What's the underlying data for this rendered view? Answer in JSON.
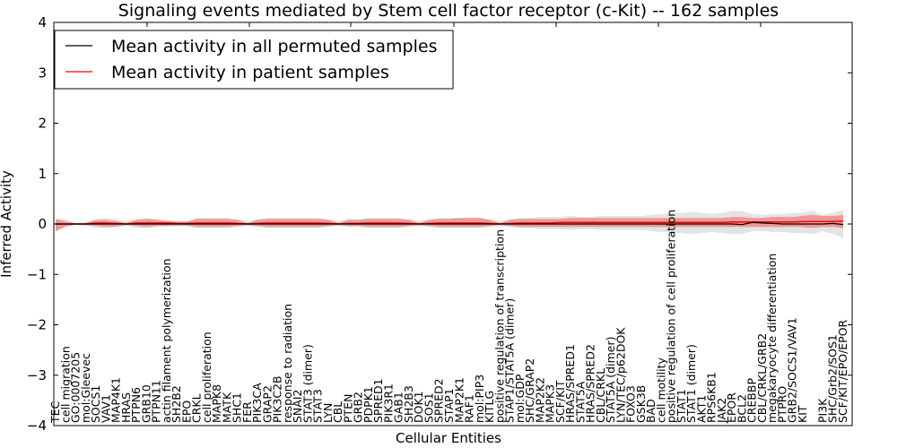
{
  "chart_data": {
    "type": "line",
    "title": "Signaling events mediated by Stem cell factor receptor (c-Kit) -- 162 samples",
    "xlabel": "Cellular Entities",
    "ylabel": "Inferred Activity",
    "ylim": [
      -4,
      4
    ],
    "yticks": [
      4,
      3,
      2,
      1,
      0,
      -1,
      -2,
      -3,
      -4
    ],
    "ytick_labels": [
      "4",
      "3",
      "2",
      "1",
      "0",
      "−1",
      "−2",
      "−3",
      "−4"
    ],
    "grid": false,
    "legend_position": "top-left",
    "legend": [
      {
        "name": "Mean activity in all permuted samples",
        "color": "#000000"
      },
      {
        "name": "Mean activity in patient samples",
        "color": "#ff0000"
      }
    ],
    "categories": [
      "TEC",
      "cell migration",
      "GO:0007205",
      "mol:Gleevec",
      "SOCS1",
      "VAV1",
      "MAP4K1",
      "HRAS",
      "PTPN6",
      "GRB10",
      "PTPN11",
      "actin filament polymerization",
      "SH2B2",
      "EPO",
      "CRKL",
      "cell proliferation",
      "MAPK8",
      "MATK",
      "SHC1",
      "FER",
      "PIK3CA",
      "GRAP2",
      "PIK3C2B",
      "response to radiation",
      "SNAI2",
      "STAT3 (dimer)",
      "STAT3",
      "LYN",
      "CBL",
      "PTEN",
      "GRB2",
      "PDPK1",
      "SPRED1",
      "PIK3R1",
      "GAB1",
      "SH2B3",
      "DOK1",
      "SOS1",
      "SPRED2",
      "STAP1",
      "MAP2K1",
      "RAF1",
      "mol:PIP3",
      "KITLG",
      "positive regulation of transcription",
      "STAP1/STAT5A (dimer)",
      "mol:GDP",
      "SHC/GRAP2",
      "MAP2K2",
      "MAPK3",
      "SCF/KIT",
      "HRAS/SPRED1",
      "STAT5A",
      "HRAS/SPRED2",
      "CBL/CRKL",
      "STAT5A (dimer)",
      "LYN/TEC/p62DOK",
      "FOXO3",
      "GSK3B",
      "BAD",
      "cell motility",
      "positive regulation of cell proliferation",
      "STAT1",
      "STAT1 (dimer)",
      "AKT1",
      "RPS6KB1",
      "JAK2",
      "EPOR",
      "BCL2",
      "CREBBP",
      "CBL/CRKL/GRB2",
      "megakaryocyte differentiation",
      "PTPRO",
      "GRB2/SOCS1/VAV1",
      "KIT",
      "",
      "PI3K",
      "SHC/Grb2/SOS1",
      "SCF/KIT/EPO/EPOR"
    ],
    "series": [
      {
        "name": "Mean activity in all permuted samples",
        "color": "#000000",
        "values": [
          0.0,
          0.0,
          0.0,
          0.0,
          0.0,
          0.0,
          0.0,
          0.0,
          0.0,
          0.0,
          0.0,
          0.0,
          0.0,
          0.0,
          0.0,
          0.0,
          0.0,
          0.0,
          0.0,
          0.0,
          0.0,
          0.0,
          0.0,
          0.0,
          0.0,
          0.0,
          0.0,
          0.0,
          0.0,
          0.0,
          0.0,
          0.0,
          0.0,
          0.0,
          0.0,
          0.0,
          0.0,
          0.0,
          0.0,
          0.0,
          0.0,
          0.0,
          0.0,
          0.0,
          0.0,
          0.0,
          0.0,
          0.0,
          0.0,
          0.0,
          0.0,
          0.0,
          0.0,
          0.0,
          0.0,
          0.0,
          0.0,
          0.0,
          0.0,
          0.0,
          0.0,
          0.0,
          0.0,
          0.0,
          0.0,
          0.0,
          0.0,
          0.0,
          -0.01,
          0.03,
          0.02,
          0.01,
          0.0,
          0.0,
          0.0,
          0.0,
          0.0,
          0.01,
          -0.01
        ],
        "band_lower": [
          -0.1,
          -0.05,
          -0.02,
          -0.04,
          -0.08,
          -0.08,
          -0.06,
          -0.04,
          -0.08,
          -0.08,
          -0.06,
          -0.05,
          -0.05,
          -0.05,
          -0.08,
          -0.08,
          -0.08,
          -0.08,
          -0.06,
          -0.04,
          -0.06,
          -0.08,
          -0.08,
          -0.08,
          -0.08,
          -0.08,
          -0.08,
          -0.06,
          -0.04,
          -0.06,
          -0.06,
          -0.08,
          -0.08,
          -0.08,
          -0.08,
          -0.06,
          -0.05,
          -0.06,
          -0.08,
          -0.08,
          -0.08,
          -0.08,
          -0.08,
          -0.06,
          -0.04,
          -0.06,
          -0.08,
          -0.08,
          -0.1,
          -0.1,
          -0.1,
          -0.12,
          -0.1,
          -0.1,
          -0.12,
          -0.12,
          -0.12,
          -0.12,
          -0.12,
          -0.14,
          -0.16,
          -0.16,
          -0.18,
          -0.2,
          -0.18,
          -0.16,
          -0.18,
          -0.2,
          -0.2,
          -0.14,
          -0.14,
          -0.16,
          -0.16,
          -0.18,
          -0.18,
          -0.2,
          -0.14,
          -0.2,
          -0.28
        ],
        "band_upper": [
          0.1,
          0.1,
          0.02,
          0.04,
          0.1,
          0.12,
          0.1,
          0.06,
          0.1,
          0.12,
          0.1,
          0.08,
          0.06,
          0.06,
          0.12,
          0.12,
          0.12,
          0.12,
          0.1,
          0.06,
          0.1,
          0.12,
          0.12,
          0.12,
          0.12,
          0.12,
          0.12,
          0.1,
          0.06,
          0.1,
          0.1,
          0.12,
          0.12,
          0.12,
          0.12,
          0.1,
          0.06,
          0.1,
          0.12,
          0.12,
          0.12,
          0.12,
          0.12,
          0.1,
          0.06,
          0.1,
          0.12,
          0.12,
          0.14,
          0.14,
          0.14,
          0.16,
          0.14,
          0.14,
          0.16,
          0.16,
          0.16,
          0.16,
          0.16,
          0.18,
          0.2,
          0.22,
          0.22,
          0.24,
          0.22,
          0.2,
          0.22,
          0.26,
          0.26,
          0.2,
          0.18,
          0.2,
          0.2,
          0.22,
          0.22,
          0.26,
          0.18,
          0.22,
          0.28
        ]
      },
      {
        "name": "Mean activity in patient samples",
        "color": "#ff0000",
        "values": [
          0.0,
          0.0,
          0.0,
          0.0,
          0.02,
          0.02,
          0.01,
          0.0,
          0.02,
          0.02,
          0.02,
          0.02,
          0.01,
          0.01,
          0.02,
          0.02,
          0.02,
          0.02,
          0.01,
          0.0,
          0.01,
          0.02,
          0.02,
          0.02,
          0.02,
          0.02,
          0.02,
          0.01,
          0.0,
          0.01,
          0.01,
          0.02,
          0.02,
          0.02,
          0.02,
          0.01,
          0.0,
          0.01,
          0.02,
          0.02,
          0.02,
          0.02,
          0.02,
          0.01,
          0.0,
          0.01,
          0.02,
          0.02,
          0.02,
          0.02,
          0.03,
          0.03,
          0.03,
          0.03,
          0.03,
          0.03,
          0.03,
          0.03,
          0.03,
          0.03,
          0.03,
          0.03,
          0.03,
          0.03,
          0.03,
          0.03,
          0.03,
          0.04,
          0.04,
          0.04,
          0.04,
          0.04,
          0.04,
          0.04,
          0.05,
          0.05,
          0.05,
          0.05,
          0.06
        ],
        "band_lower": [
          -0.15,
          -0.05,
          -0.01,
          -0.02,
          -0.04,
          -0.06,
          -0.05,
          -0.02,
          -0.04,
          -0.06,
          -0.04,
          -0.04,
          -0.03,
          -0.03,
          -0.06,
          -0.06,
          -0.06,
          -0.06,
          -0.04,
          -0.02,
          -0.04,
          -0.06,
          -0.06,
          -0.06,
          -0.06,
          -0.06,
          -0.06,
          -0.04,
          -0.02,
          -0.04,
          -0.04,
          -0.06,
          -0.06,
          -0.06,
          -0.06,
          -0.04,
          -0.02,
          -0.04,
          -0.06,
          -0.06,
          -0.06,
          -0.06,
          -0.06,
          -0.04,
          -0.02,
          -0.04,
          -0.06,
          -0.06,
          -0.06,
          -0.06,
          -0.06,
          -0.06,
          -0.06,
          -0.06,
          -0.06,
          -0.06,
          -0.06,
          -0.06,
          -0.06,
          -0.06,
          -0.06,
          -0.06,
          -0.06,
          -0.06,
          -0.06,
          -0.06,
          -0.06,
          -0.06,
          -0.06,
          -0.06,
          -0.06,
          -0.06,
          -0.06,
          -0.06,
          -0.06,
          -0.08,
          -0.06,
          -0.06,
          -0.08
        ],
        "band_upper": [
          0.1,
          0.05,
          0.01,
          0.02,
          0.08,
          0.08,
          0.06,
          0.02,
          0.08,
          0.1,
          0.08,
          0.06,
          0.05,
          0.05,
          0.1,
          0.1,
          0.1,
          0.1,
          0.08,
          0.02,
          0.08,
          0.1,
          0.1,
          0.1,
          0.1,
          0.1,
          0.1,
          0.08,
          0.02,
          0.08,
          0.08,
          0.1,
          0.1,
          0.1,
          0.1,
          0.08,
          0.02,
          0.08,
          0.1,
          0.1,
          0.12,
          0.12,
          0.12,
          0.08,
          0.02,
          0.08,
          0.1,
          0.1,
          0.1,
          0.1,
          0.1,
          0.12,
          0.12,
          0.12,
          0.12,
          0.12,
          0.12,
          0.12,
          0.12,
          0.12,
          0.12,
          0.12,
          0.12,
          0.12,
          0.12,
          0.12,
          0.12,
          0.14,
          0.14,
          0.12,
          0.12,
          0.14,
          0.14,
          0.14,
          0.16,
          0.18,
          0.16,
          0.16,
          0.18
        ]
      }
    ]
  }
}
